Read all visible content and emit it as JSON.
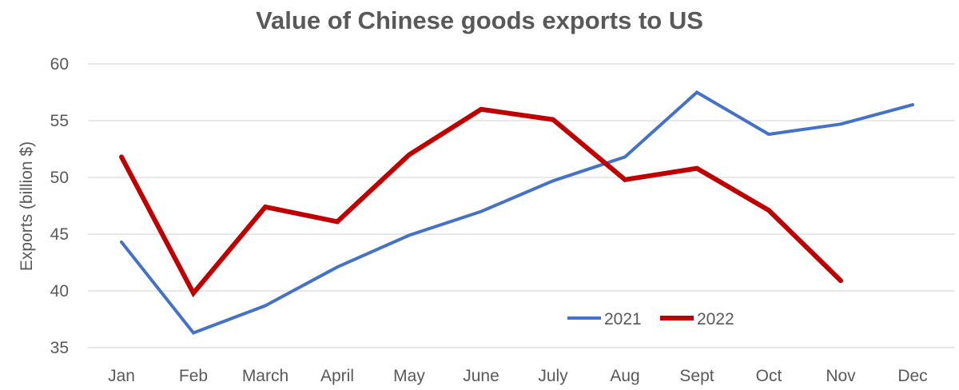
{
  "chart_data": {
    "type": "line",
    "title": "Value of Chinese goods exports to US",
    "xlabel": "",
    "ylabel": "Exports (billion $)",
    "ylim": [
      35,
      60
    ],
    "yticks": [
      35,
      40,
      45,
      50,
      55,
      60
    ],
    "grid": true,
    "legend_position": "bottom-center-right",
    "categories": [
      "Jan",
      "Feb",
      "March",
      "April",
      "May",
      "June",
      "July",
      "Aug",
      "Sept",
      "Oct",
      "Nov",
      "Dec"
    ],
    "series": [
      {
        "name": "2021",
        "color": "#4472C4",
        "values": [
          44.3,
          36.3,
          38.7,
          42.1,
          44.9,
          47.0,
          49.7,
          51.8,
          57.5,
          53.8,
          54.7,
          56.4
        ]
      },
      {
        "name": "2022",
        "color": "#C00000",
        "values": [
          51.8,
          39.8,
          47.4,
          46.1,
          52.0,
          56.0,
          55.1,
          49.8,
          50.8,
          47.1,
          40.9,
          null
        ]
      }
    ]
  }
}
